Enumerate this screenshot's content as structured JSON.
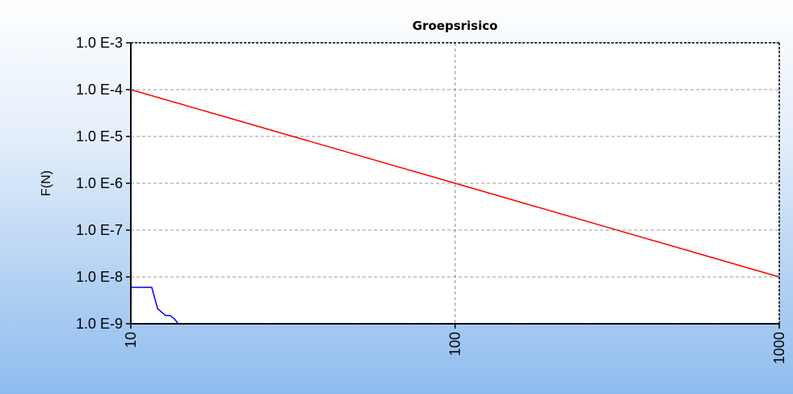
{
  "chart_data": {
    "type": "line",
    "title": "Groepsrisico",
    "xlabel": "",
    "ylabel": "F(N)",
    "x_scale": "log",
    "y_scale": "log",
    "xlim": [
      10,
      1000
    ],
    "ylim": [
      1e-09,
      0.001
    ],
    "x_ticks": [
      10,
      100,
      1000
    ],
    "x_tick_labels": [
      "10",
      "100",
      "1000"
    ],
    "y_ticks": [
      0.001,
      0.0001,
      1e-05,
      1e-06,
      1e-07,
      1e-08,
      1e-09
    ],
    "y_tick_labels": [
      "1.0 E-3",
      "1.0 E-4",
      "1.0 E-5",
      "1.0 E-6",
      "1.0 E-7",
      "1.0 E-8",
      "1.0 E-9"
    ],
    "grid": true,
    "legend": "none",
    "series": [
      {
        "color": "#ff0000",
        "x": [
          10,
          1000
        ],
        "y": [
          0.0001,
          1e-08
        ]
      },
      {
        "color": "#0000ff",
        "x": [
          10,
          10.9,
          11.6,
          12.1,
          12.8,
          13.2,
          13.6,
          14.0
        ],
        "y": [
          6e-09,
          6e-09,
          6e-09,
          2.1e-09,
          1.5e-09,
          1.5e-09,
          1.3e-09,
          1e-09
        ]
      }
    ],
    "colors": {
      "background_top": "#ffffff",
      "background_bottom": "#8fbcef",
      "plot_area": "#ffffff",
      "grid": "#999999",
      "axis": "#000000"
    }
  }
}
